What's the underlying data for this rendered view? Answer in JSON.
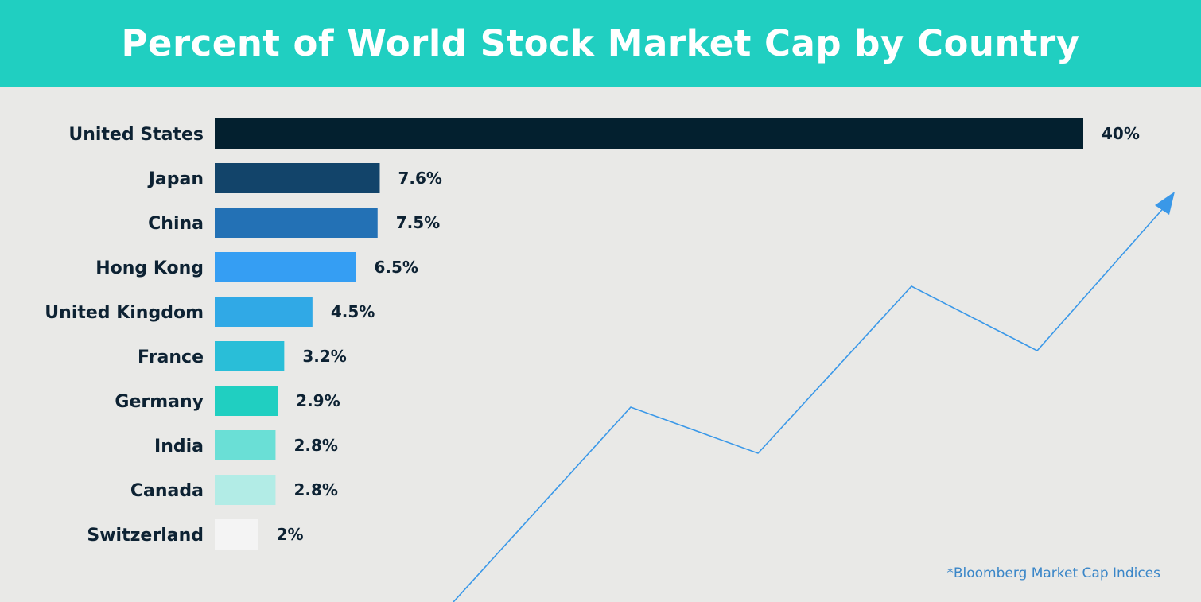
{
  "header": {
    "title": "Percent of World Stock Market Cap by Country"
  },
  "chart_data": {
    "type": "bar",
    "orientation": "horizontal",
    "title": "Percent of World Stock Market Cap by Country",
    "categories": [
      "United States",
      "Japan",
      "China",
      "Hong Kong",
      "United Kingdom",
      "France",
      "Germany",
      "India",
      "Canada",
      "Switzerland"
    ],
    "values": [
      40,
      7.6,
      7.5,
      6.5,
      4.5,
      3.2,
      2.9,
      2.8,
      2.8,
      2
    ],
    "value_labels": [
      "40%",
      "7.6%",
      "7.5%",
      "6.5%",
      "4.5%",
      "3.2%",
      "2.9%",
      "2.8%",
      "2.8%",
      "2%"
    ],
    "colors": [
      "#03202f",
      "#12446a",
      "#2371b5",
      "#359ef3",
      "#30a9e6",
      "#29bed8",
      "#20cfc1",
      "#6adfd6",
      "#b2ece6",
      "#f4f4f4"
    ],
    "xlim": [
      0,
      40
    ],
    "grid": false,
    "decoration": {
      "type": "trend-arrow",
      "color": "#3a98e8"
    }
  },
  "footer": {
    "source": "*Bloomberg Market Cap Indices"
  }
}
